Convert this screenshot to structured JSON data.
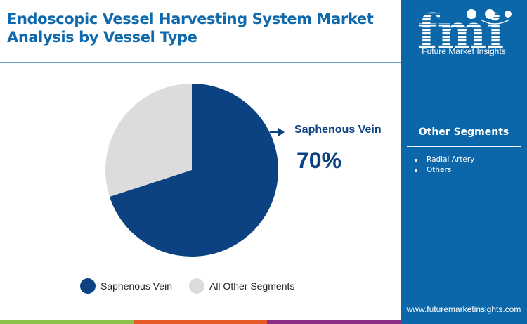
{
  "header": {
    "title": "Endoscopic Vessel Harvesting System Market Analysis by Vessel Type"
  },
  "brand": {
    "logo_letters": "fmi",
    "name": "Future Market Insights",
    "url": "www.futuremarketinsights.com",
    "sidebar_color": "#0b67a9"
  },
  "callout": {
    "label": "Saphenous Vein",
    "value": "70%"
  },
  "other_segments": {
    "heading": "Other Segments",
    "items": [
      "Radial Artery",
      "Others"
    ]
  },
  "legend": {
    "items": [
      {
        "label": "Saphenous Vein",
        "color": "#0d4282"
      },
      {
        "label": "All Other Segments",
        "color": "#dcdcdc"
      }
    ]
  },
  "bottom_bar": {
    "colors": [
      "#8cc04a",
      "#e55a27",
      "#8c2e86",
      "#0b67a9"
    ]
  },
  "chart_data": {
    "type": "pie",
    "title": "Endoscopic Vessel Harvesting System Market Analysis by Vessel Type",
    "categories": [
      "Saphenous Vein",
      "All Other Segments"
    ],
    "values": [
      70,
      30
    ],
    "colors": [
      "#0d4282",
      "#dcdcdc"
    ],
    "annotations": [
      {
        "label": "Saphenous Vein",
        "value": "70%"
      }
    ],
    "legend_position": "bottom"
  }
}
